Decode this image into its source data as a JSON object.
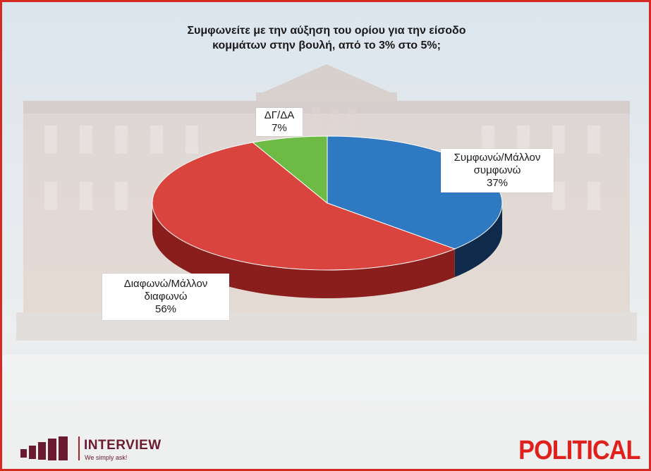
{
  "chart_data": {
    "type": "pie",
    "title_lines": [
      "Συμφωνείτε με την αύξηση του ορίου για την είσοδο",
      "κομμάτων στην βουλή, από το 3% στο 5%;"
    ],
    "slices": [
      {
        "label_lines": [
          "Συμφωνώ/Μάλλον",
          "συμφωνώ"
        ],
        "value": 37,
        "value_label": "37%",
        "color": "#2e79c2",
        "side_color": "#0f2a4a"
      },
      {
        "label_lines": [
          "Διαφωνώ/Μάλλον",
          "διαφωνώ"
        ],
        "value": 56,
        "value_label": "56%",
        "color": "#d9443e",
        "side_color": "#8a1e1c"
      },
      {
        "label_lines": [
          "ΔΓ/ΔΑ"
        ],
        "value": 7,
        "value_label": "7%",
        "color": "#6dba45",
        "side_color": "#3f7a27"
      }
    ],
    "style": "3d-pie"
  },
  "branding": {
    "interview_name": "INTERVIEW",
    "interview_tagline": "We simply ask!",
    "political_name": "POLITICAL",
    "border_color": "#d42a22"
  }
}
